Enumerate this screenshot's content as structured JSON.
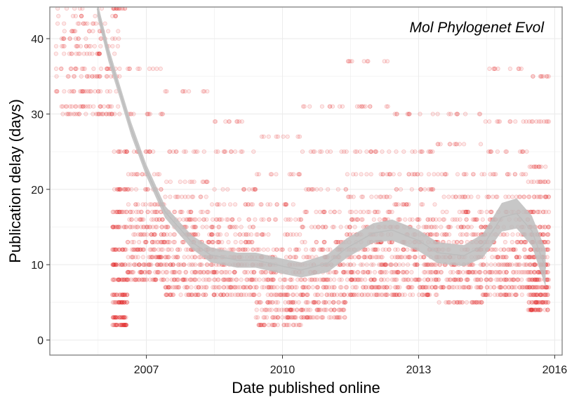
{
  "chart_data": {
    "type": "scatter",
    "title": "",
    "annotation": "Mol Phylogenet Evol",
    "xlabel": "Date published online",
    "ylabel": "Publication delay (days)",
    "xlim": [
      "2004-11-15",
      "2016-03-01"
    ],
    "ylim": [
      -2,
      44.2
    ],
    "x_ticks": [
      {
        "date": "2007-01-01",
        "label": "2007"
      },
      {
        "date": "2010-01-01",
        "label": "2010"
      },
      {
        "date": "2013-01-01",
        "label": "2013"
      },
      {
        "date": "2016-01-01",
        "label": "2016"
      }
    ],
    "y_ticks": [
      {
        "value": 0,
        "label": "0"
      },
      {
        "value": 10,
        "label": "10"
      },
      {
        "value": 20,
        "label": "20"
      },
      {
        "value": 30,
        "label": "30"
      },
      {
        "value": 40,
        "label": "40"
      }
    ],
    "grid": true,
    "legend": "none",
    "colors": {
      "points": "#e41a1c",
      "smooth_band": "#bdbdbd",
      "panel_border": "#7f7f7f",
      "grid": "#ececec"
    },
    "point_clusters": [
      {
        "x_start": "2005-01-01",
        "x_end": "2006-06-01",
        "y_values": [
          30,
          31,
          33,
          35,
          36,
          38,
          39,
          40,
          41,
          42,
          43,
          44
        ]
      },
      {
        "x_start": "2006-04-01",
        "x_end": "2006-08-01",
        "y_values": [
          2,
          3,
          5,
          6,
          8,
          10,
          12,
          15,
          17,
          20,
          25,
          44
        ]
      },
      {
        "x_start": "2006-08-01",
        "x_end": "2007-06-01",
        "y_values": [
          8,
          9,
          10,
          11,
          12,
          13,
          14,
          15,
          16,
          17,
          18,
          20,
          22,
          25,
          30,
          36
        ]
      },
      {
        "x_start": "2007-06-01",
        "x_end": "2008-06-01",
        "y_values": [
          6,
          7,
          8,
          9,
          10,
          11,
          12,
          13,
          14,
          15,
          16,
          17,
          19,
          21,
          25,
          33
        ]
      },
      {
        "x_start": "2008-06-01",
        "x_end": "2009-06-01",
        "y_values": [
          6,
          7,
          8,
          9,
          10,
          11,
          12,
          13,
          14,
          15,
          16,
          18,
          20,
          25,
          29
        ]
      },
      {
        "x_start": "2009-06-01",
        "x_end": "2010-06-01",
        "y_values": [
          2,
          3,
          4,
          5,
          6,
          7,
          8,
          9,
          10,
          11,
          12,
          14,
          16,
          18,
          22,
          27
        ]
      },
      {
        "x_start": "2010-06-01",
        "x_end": "2011-06-01",
        "y_values": [
          3,
          4,
          5,
          6,
          7,
          8,
          9,
          10,
          11,
          12,
          13,
          15,
          17,
          20,
          25,
          31
        ]
      },
      {
        "x_start": "2011-06-01",
        "x_end": "2012-06-01",
        "y_values": [
          6,
          7,
          8,
          9,
          10,
          11,
          12,
          13,
          14,
          15,
          16,
          17,
          19,
          22,
          25,
          31,
          37
        ]
      },
      {
        "x_start": "2012-06-01",
        "x_end": "2013-06-01",
        "y_values": [
          6,
          7,
          8,
          9,
          10,
          11,
          12,
          13,
          14,
          15,
          16,
          18,
          20,
          22,
          25,
          30
        ]
      },
      {
        "x_start": "2013-06-01",
        "x_end": "2014-06-01",
        "y_values": [
          5,
          7,
          8,
          9,
          10,
          11,
          12,
          13,
          14,
          15,
          16,
          17,
          19,
          22,
          26,
          30
        ]
      },
      {
        "x_start": "2014-06-01",
        "x_end": "2015-06-01",
        "y_values": [
          6,
          7,
          8,
          9,
          10,
          11,
          12,
          13,
          14,
          15,
          16,
          17,
          19,
          22,
          25,
          29,
          36
        ]
      },
      {
        "x_start": "2015-06-01",
        "x_end": "2015-11-15",
        "y_values": [
          4,
          5,
          6,
          7,
          8,
          9,
          10,
          11,
          12,
          13,
          14,
          15,
          17,
          19,
          21,
          23,
          29,
          35
        ]
      }
    ],
    "smooth": {
      "x": [
        "2005-12-01",
        "2006-03-01",
        "2006-06-01",
        "2006-09-01",
        "2007-01-01",
        "2007-06-01",
        "2008-01-01",
        "2008-06-01",
        "2009-01-01",
        "2009-06-01",
        "2010-01-01",
        "2010-06-01",
        "2011-01-01",
        "2011-06-01",
        "2012-01-01",
        "2012-06-01",
        "2013-01-01",
        "2013-06-01",
        "2014-01-01",
        "2014-06-01",
        "2014-11-01",
        "2015-03-01",
        "2015-07-01",
        "2015-10-20"
      ],
      "y": [
        44,
        38,
        33,
        28,
        22.5,
        17,
        13,
        11.3,
        10.6,
        10.6,
        9.8,
        9.3,
        10.2,
        12.2,
        14.2,
        14.6,
        13.2,
        11.6,
        11.2,
        12.5,
        16.3,
        16.8,
        14.5,
        9.5
      ],
      "half_width": [
        1,
        1,
        0.9,
        0.9,
        0.8,
        0.8,
        0.9,
        1,
        1,
        1,
        1,
        1,
        1.2,
        1.3,
        1.3,
        1.4,
        1.4,
        1.4,
        1.4,
        1.6,
        1.9,
        2,
        2,
        2.5
      ]
    }
  }
}
